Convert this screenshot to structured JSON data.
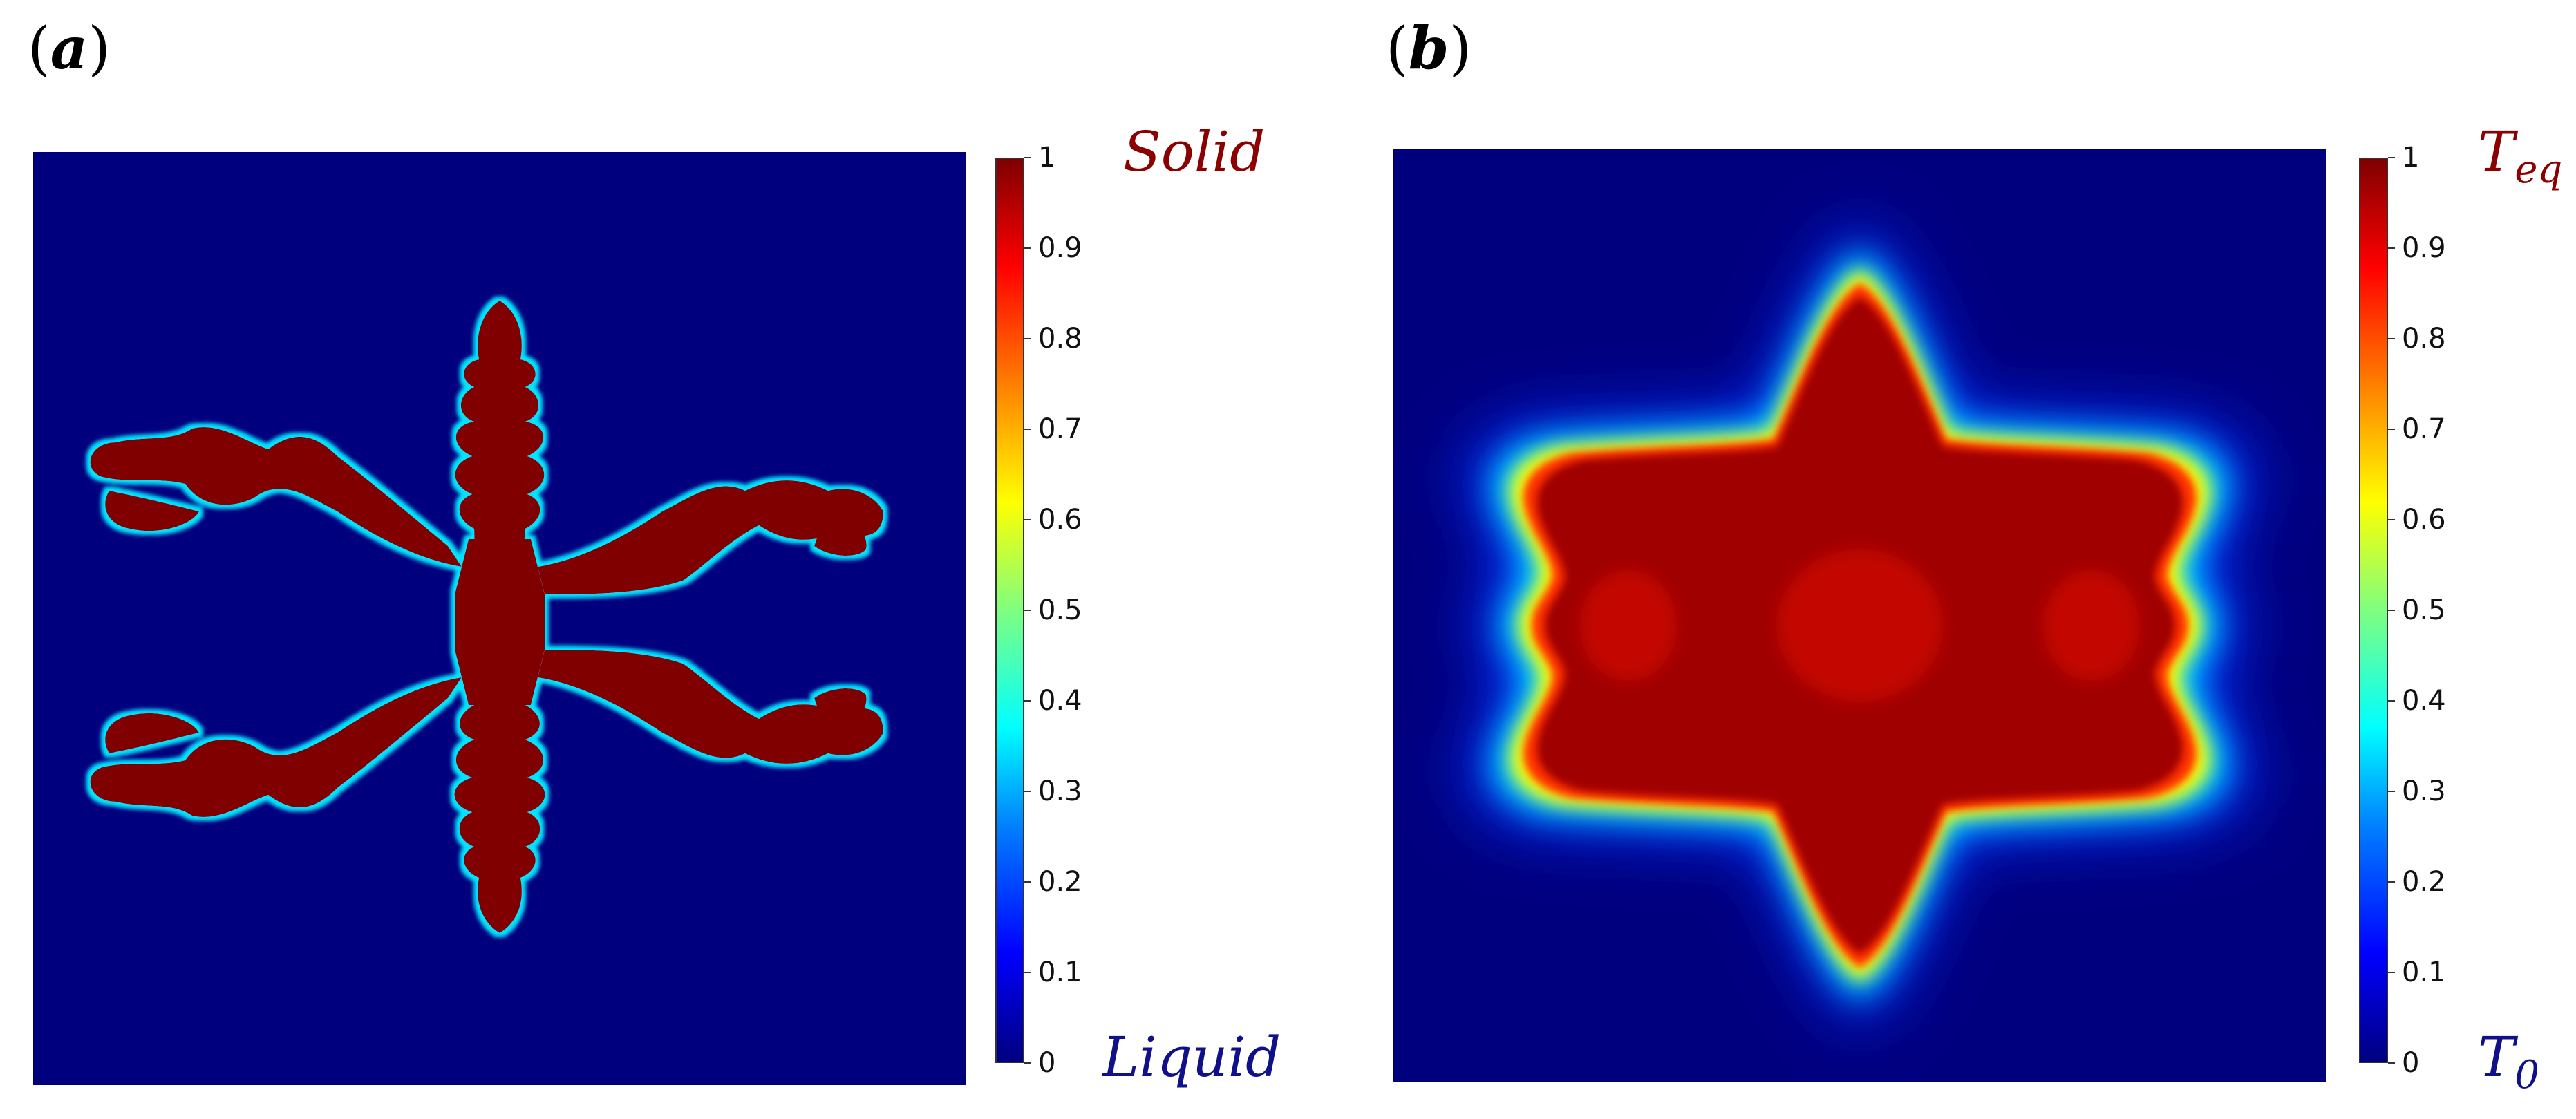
{
  "panels": [
    {
      "label": "a",
      "colorbar": {
        "ticks": [
          "1",
          "0.9",
          "0.8",
          "0.7",
          "0.6",
          "0.5",
          "0.4",
          "0.3",
          "0.2",
          "0.1",
          "0"
        ],
        "top_label": "Solid",
        "bottom_label": "Liquid"
      }
    },
    {
      "label": "b",
      "colorbar": {
        "ticks": [
          "1",
          "0.9",
          "0.8",
          "0.7",
          "0.6",
          "0.5",
          "0.4",
          "0.3",
          "0.2",
          "0.1",
          "0"
        ],
        "top_label_base": "T",
        "top_label_sub": "eq",
        "bottom_label_base": "T",
        "bottom_label_sub": "0"
      }
    }
  ],
  "colors": {
    "background": "#00007f",
    "solid": "#800000",
    "hot": "#a00000",
    "glow_mid": "#ff3300",
    "glow_yellow": "#ffff00",
    "glow_cyan": "#00e5ff",
    "glow_blue": "#0033ff"
  }
}
